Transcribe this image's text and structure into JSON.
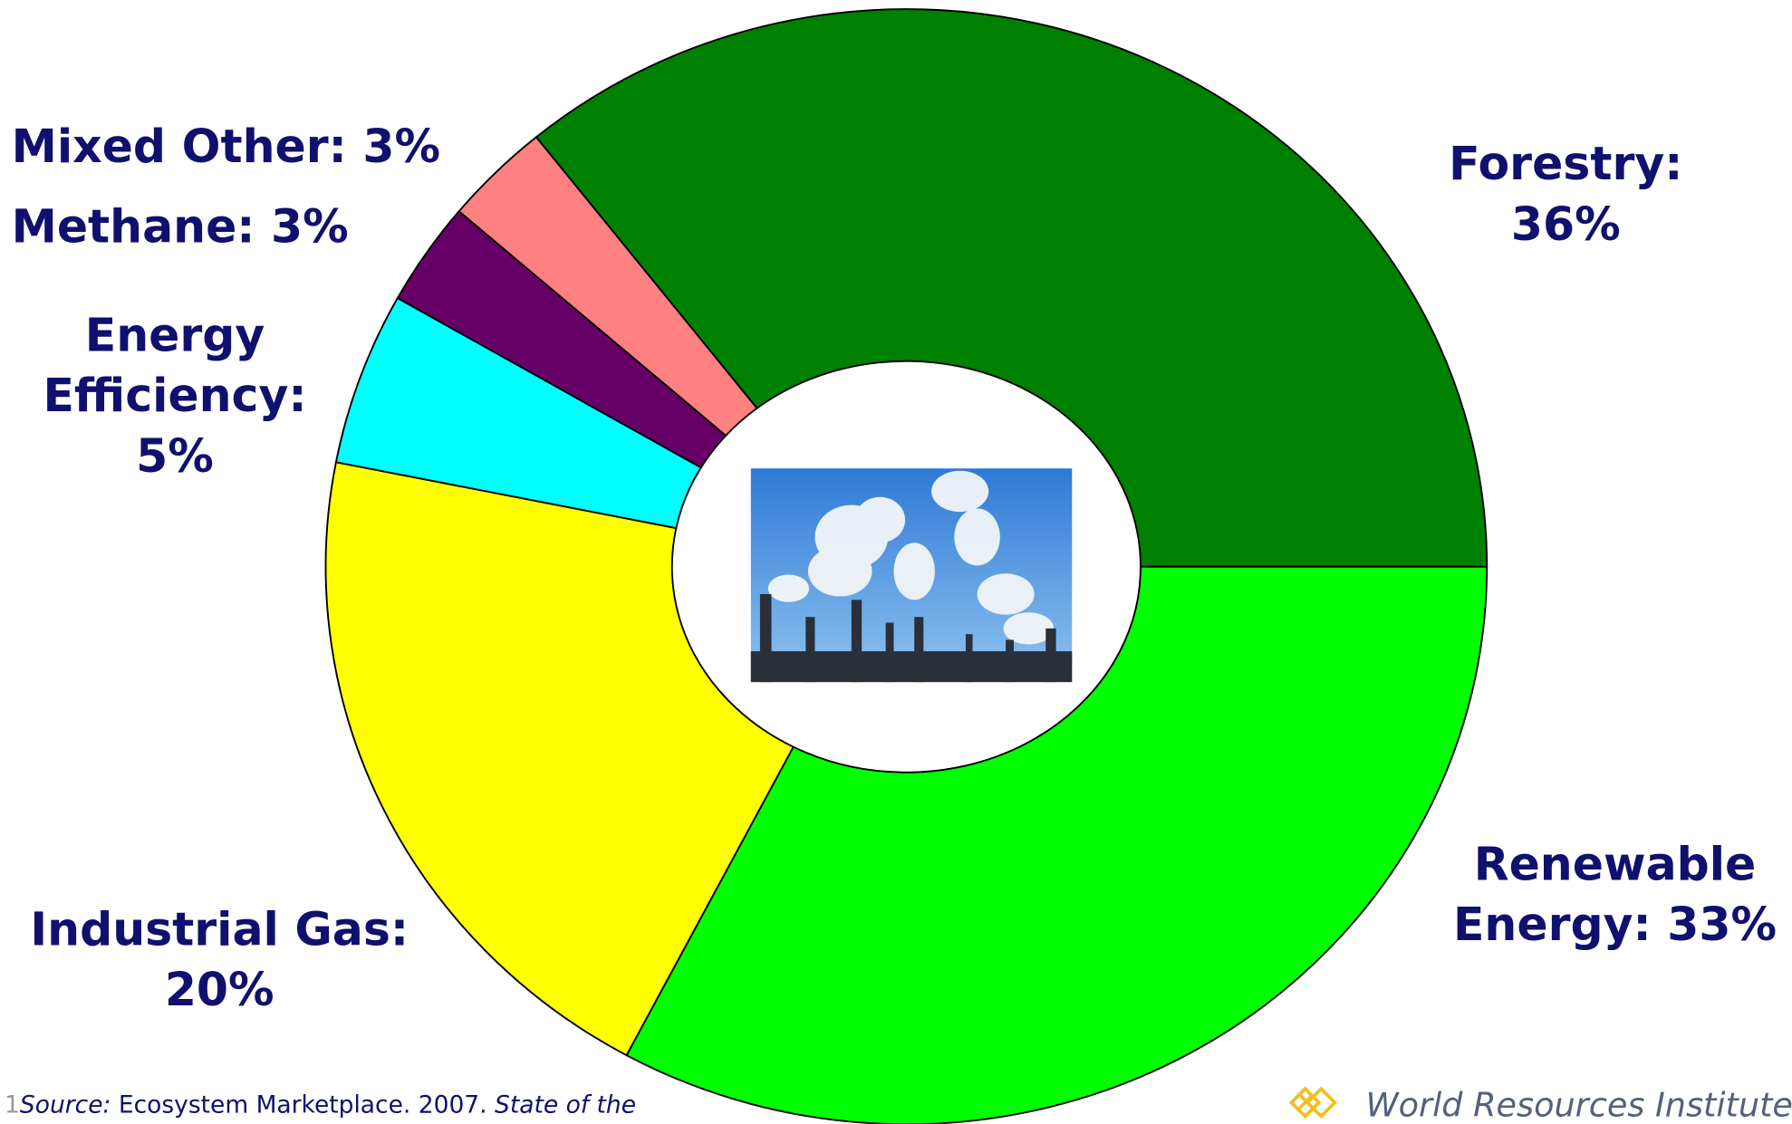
{
  "chart_data": {
    "type": "donut",
    "categories": [
      "Forestry:",
      "Mixed Other:",
      "Methane:",
      "Energy Efficiency:",
      "Industrial Gas:",
      "Renewable Energy:"
    ],
    "values": [
      36,
      3,
      3,
      5,
      20,
      33
    ],
    "value_labels": [
      "36%",
      "3%",
      "3%",
      "5%",
      "20%",
      "33%"
    ],
    "colors": [
      "#008000",
      "#ff8080",
      "#660066",
      "#00ffff",
      "#ffff00",
      "#00ff00"
    ]
  },
  "footer": {
    "page_number": "1",
    "source_label": "Source:",
    "source_text": "Ecosystem Marketplace. 2007.",
    "source_title": "State of the",
    "organization": "World Resources Institute"
  }
}
